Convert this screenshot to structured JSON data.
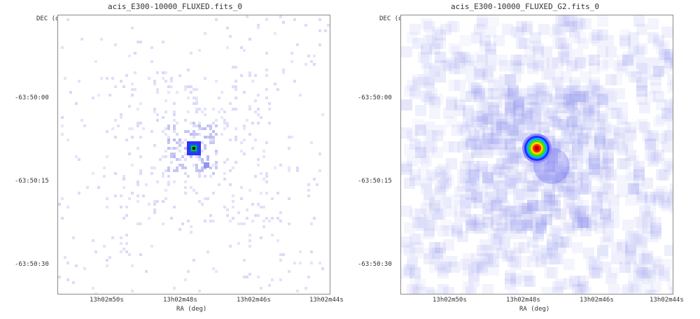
{
  "panels": [
    {
      "title": "acis_E300-10000_FLUXED.fits_0",
      "ylabel": "DEC (deg)",
      "xlabel": "RA (deg)",
      "y_ticks": [
        "-63:50:00",
        "-63:50:15",
        "-63:50:30"
      ],
      "x_ticks": [
        "13h02m50s",
        "13h02m48s",
        "13h02m46s",
        "13h02m44s"
      ],
      "image_style": "sparse pixels, compact green/blue point source",
      "source_colormap": [
        "#000000",
        "#00d000",
        "#0060ff",
        "#3030ff"
      ]
    },
    {
      "title": "acis_E300-10000_FLUXED_G2.fits_0",
      "ylabel": "DEC (deg)",
      "xlabel": "RA (deg)",
      "y_ticks": [
        "-63:50:00",
        "-63:50:15",
        "-63:50:30"
      ],
      "x_ticks": [
        "13h02m50s",
        "13h02m48s",
        "13h02m46s",
        "13h02m44s"
      ],
      "image_style": "smoothed, extended diffuse emission with bright red/yellow core",
      "source_colormap": [
        "#b00000",
        "#ff2000",
        "#ffd000",
        "#40e000",
        "#00b0ff",
        "#2a2aff",
        "#8a8aff"
      ]
    }
  ],
  "colors": {
    "background_pixel": "#ffffff",
    "faint_pixel": "#d8d8f8",
    "diffuse_emission": "#a0a4f0",
    "frame": "#8a8a8a"
  }
}
